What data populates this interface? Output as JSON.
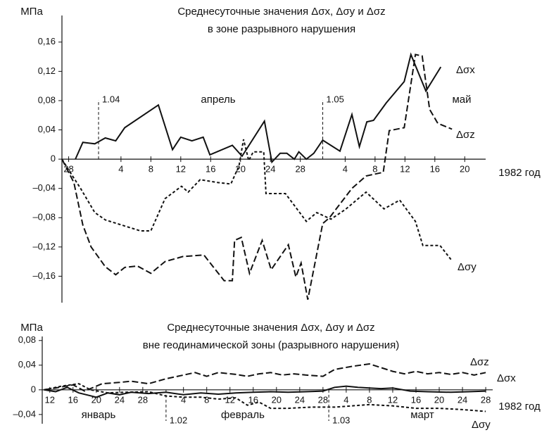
{
  "chart_data": [
    {
      "type": "line",
      "title": "Среднесуточные значения Δσx, Δσy и Δσz",
      "subtitle": "в зоне разрывного нарушения",
      "y_label": "МПа",
      "x_label": "1982 год",
      "months": [
        "апрель",
        "май"
      ],
      "markers": [
        {
          "x": 4,
          "label": "1.04"
        },
        {
          "x": 34,
          "label": "1.05"
        }
      ],
      "xlim": [
        -0.9,
        55.8
      ],
      "ylim": [
        -0.2,
        0.18
      ],
      "xticks": [
        {
          "value": 0,
          "label": "28"
        },
        {
          "value": 7,
          "label": "4"
        },
        {
          "value": 11,
          "label": "8"
        },
        {
          "value": 15,
          "label": "12"
        },
        {
          "value": 19,
          "label": "16"
        },
        {
          "value": 23,
          "label": "20"
        },
        {
          "value": 27,
          "label": "24"
        },
        {
          "value": 31,
          "label": "28"
        },
        {
          "value": 37,
          "label": "4"
        },
        {
          "value": 41,
          "label": "8"
        },
        {
          "value": 45,
          "label": "12"
        },
        {
          "value": 49,
          "label": "16"
        },
        {
          "value": 53,
          "label": "20"
        }
      ],
      "yticks": [
        {
          "value": 0.16,
          "label": "0,16"
        },
        {
          "value": 0.12,
          "label": "0,12"
        },
        {
          "value": 0.08,
          "label": "0,08"
        },
        {
          "value": 0.04,
          "label": "0,04"
        },
        0,
        {
          "value": -0.04,
          "label": "–0,04"
        },
        {
          "value": -0.08,
          "label": "–0,08"
        },
        {
          "value": -0.12,
          "label": "–0,12"
        },
        {
          "value": -0.16,
          "label": "–0,16"
        }
      ],
      "series": [
        {
          "name": "Δσx",
          "color": "#111111",
          "dash": "solid",
          "x": [
            0.9,
            1.9,
            3.5,
            4.9,
            6.3,
            7.5,
            12.0,
            13.9,
            15.0,
            16.5,
            18.0,
            18.9,
            21.9,
            23.2,
            26.2,
            27.2,
            28.3,
            29.2,
            30.2,
            30.8,
            31.8,
            32.8,
            34.0,
            36.3,
            37.9,
            38.9,
            39.9,
            40.8,
            42.5,
            44.9,
            45.8,
            47.8,
            49.8
          ],
          "values": [
            0,
            0.023,
            0.021,
            0.029,
            0.025,
            0.043,
            0.074,
            0.013,
            0.03,
            0.025,
            0.03,
            0.006,
            0.019,
            0.004,
            0.052,
            -0.004,
            0.008,
            0.008,
            0,
            0.01,
            0,
            0.008,
            0.026,
            0.011,
            0.061,
            0.017,
            0.051,
            0.053,
            0.077,
            0.106,
            0.143,
            0.093,
            0.126
          ]
        },
        {
          "name": "Δσy",
          "color": "#111111",
          "dash": "short",
          "x": [
            -0.9,
            0.2,
            1.6,
            3.5,
            4.9,
            7.7,
            9.6,
            11.0,
            12.9,
            15.1,
            16.0,
            17.6,
            20.0,
            21.7,
            22.8,
            23.4,
            24.1,
            24.7,
            26.1,
            26.4,
            29.0,
            31.8,
            33.2,
            35.1,
            37.0,
            39.8,
            42.2,
            44.3,
            46.4,
            47.4,
            48.5,
            49.7,
            51.3
          ],
          "values": [
            0,
            -0.018,
            -0.04,
            -0.073,
            -0.083,
            -0.092,
            -0.098,
            -0.098,
            -0.054,
            -0.037,
            -0.045,
            -0.028,
            -0.032,
            -0.034,
            -0.009,
            0.027,
            -0.002,
            0.01,
            0.01,
            -0.047,
            -0.047,
            -0.085,
            -0.073,
            -0.082,
            -0.069,
            -0.045,
            -0.068,
            -0.056,
            -0.085,
            -0.118,
            -0.118,
            -0.118,
            -0.139
          ]
        },
        {
          "name": "Δσz",
          "color": "#111111",
          "dash": "long",
          "x": [
            -0.9,
            0.7,
            1.9,
            3.0,
            4.9,
            6.3,
            7.5,
            9.2,
            11.0,
            12.9,
            15.3,
            18.1,
            20.8,
            21.9,
            22.2,
            23.1,
            24.2,
            25.9,
            27.1,
            29.4,
            30.4,
            31.1,
            32.0,
            34.0,
            34.9,
            37.9,
            39.8,
            42.1,
            42.9,
            44.9,
            46.4,
            47.3,
            48.3,
            49.4,
            51.3
          ],
          "values": [
            0,
            -0.032,
            -0.09,
            -0.12,
            -0.147,
            -0.158,
            -0.148,
            -0.146,
            -0.156,
            -0.14,
            -0.133,
            -0.131,
            -0.166,
            -0.166,
            -0.111,
            -0.107,
            -0.156,
            -0.111,
            -0.151,
            -0.117,
            -0.161,
            -0.142,
            -0.192,
            -0.088,
            -0.08,
            -0.04,
            -0.023,
            -0.018,
            0.039,
            0.043,
            0.143,
            0.141,
            0.068,
            0.049,
            0.041
          ]
        }
      ]
    },
    {
      "type": "line",
      "title": "Среднесуточные значения Δσx, Δσy и Δσz",
      "subtitle": "вне геодинамической зоны (разрывного нарушения)",
      "y_label": "МПа",
      "x_label": "1982 год",
      "months": [
        "январь",
        "февраль",
        "март"
      ],
      "markers": [
        {
          "x": 31,
          "label": "1.02"
        },
        {
          "x": 59,
          "label": "1.03"
        }
      ],
      "xlim": [
        9.7,
        87.2
      ],
      "ylim": [
        -0.055,
        0.09
      ],
      "xticks": [
        {
          "value": 11,
          "label": "12"
        },
        {
          "value": 15,
          "label": "16"
        },
        {
          "value": 19,
          "label": "20"
        },
        {
          "value": 23,
          "label": "24"
        },
        {
          "value": 27,
          "label": "28"
        },
        {
          "value": 34,
          "label": "4"
        },
        {
          "value": 38,
          "label": "8"
        },
        {
          "value": 42,
          "label": "12"
        },
        {
          "value": 46,
          "label": "16"
        },
        {
          "value": 50,
          "label": "20"
        },
        {
          "value": 54,
          "label": "24"
        },
        {
          "value": 58,
          "label": "28"
        },
        {
          "value": 62,
          "label": "4"
        },
        {
          "value": 66,
          "label": "8"
        },
        {
          "value": 70,
          "label": "12"
        },
        {
          "value": 74,
          "label": "16"
        },
        {
          "value": 78,
          "label": "20"
        },
        {
          "value": 82,
          "label": "24"
        },
        {
          "value": 86,
          "label": "28"
        }
      ],
      "yticks": [
        {
          "value": 0.08,
          "label": "0,08"
        },
        {
          "value": 0.04,
          "label": "0,04"
        },
        0,
        {
          "value": -0.04,
          "label": "–0,04"
        }
      ],
      "series": [
        {
          "name": "Δσx",
          "color": "#111111",
          "dash": "solid",
          "x": [
            10,
            12,
            14,
            16,
            19,
            21,
            23,
            25,
            28,
            31,
            34,
            37,
            40,
            43,
            46,
            49,
            52,
            55,
            58,
            60,
            62,
            64,
            66,
            68,
            70,
            73,
            76,
            80,
            83,
            86
          ],
          "values": [
            0,
            -0.003,
            0.004,
            -0.005,
            -0.012,
            -0.005,
            -0.008,
            -0.004,
            -0.006,
            -0.004,
            -0.008,
            -0.005,
            -0.007,
            -0.005,
            -0.004,
            -0.003,
            -0.004,
            -0.003,
            -0.002,
            0.004,
            0.006,
            0.004,
            0.003,
            0.002,
            0.003,
            -0.002,
            -0.003,
            -0.004,
            -0.003,
            -0.002
          ]
        },
        {
          "name": "Δσy",
          "color": "#111111",
          "dash": "short",
          "x": [
            10,
            13,
            16,
            18,
            21,
            24,
            28,
            31,
            34,
            37,
            40,
            43,
            45,
            47,
            49,
            52,
            56,
            60,
            63,
            66,
            70,
            74,
            78,
            82,
            86
          ],
          "values": [
            0,
            0.006,
            0.01,
            0,
            -0.005,
            -0.004,
            -0.003,
            -0.01,
            -0.012,
            -0.012,
            -0.015,
            -0.013,
            -0.025,
            -0.02,
            -0.03,
            -0.03,
            -0.028,
            -0.028,
            -0.026,
            -0.024,
            -0.026,
            -0.03,
            -0.03,
            -0.032,
            -0.035
          ]
        },
        {
          "name": "Δσz",
          "color": "#111111",
          "dash": "long",
          "x": [
            10,
            12,
            15,
            17,
            20,
            23,
            25,
            28,
            31,
            33,
            36,
            38,
            40,
            43,
            45,
            47,
            49,
            51,
            53,
            55,
            58,
            60,
            63,
            66,
            68,
            70,
            72,
            74,
            76,
            78,
            80,
            82,
            84,
            86
          ],
          "values": [
            0,
            0.003,
            0.008,
            -0.002,
            0.01,
            0.012,
            0.014,
            0.01,
            0.018,
            0.022,
            0.028,
            0.022,
            0.028,
            0.025,
            0.022,
            0.026,
            0.028,
            0.024,
            0.026,
            0.024,
            0.022,
            0.033,
            0.038,
            0.042,
            0.036,
            0.03,
            0.026,
            0.03,
            0.026,
            0.028,
            0.025,
            0.028,
            0.024,
            0.028
          ]
        }
      ]
    }
  ]
}
